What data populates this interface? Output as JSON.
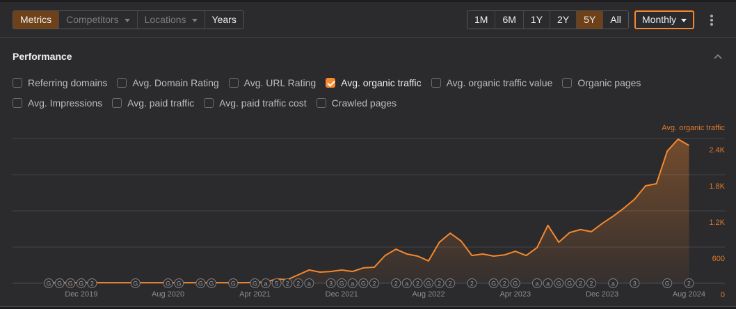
{
  "toolbar": {
    "left_tabs": [
      {
        "label": "Metrics",
        "active": true
      },
      {
        "label": "Competitors",
        "dropdown": true
      },
      {
        "label": "Locations",
        "dropdown": true
      },
      {
        "label": "Years"
      }
    ],
    "ranges": [
      {
        "label": "1M"
      },
      {
        "label": "6M"
      },
      {
        "label": "1Y"
      },
      {
        "label": "2Y"
      },
      {
        "label": "5Y",
        "active": true
      },
      {
        "label": "All"
      }
    ],
    "interval": "Monthly",
    "more_icon": "kebab-vertical-icon"
  },
  "section": {
    "title": "Performance",
    "collapse_icon": "chevron-up-icon"
  },
  "metrics": [
    [
      {
        "label": "Referring domains",
        "checked": false
      },
      {
        "label": "Avg. Domain Rating",
        "checked": false
      },
      {
        "label": "Avg. URL Rating",
        "checked": false
      },
      {
        "label": "Avg. organic traffic",
        "checked": true
      },
      {
        "label": "Avg. organic traffic value",
        "checked": false
      },
      {
        "label": "Organic pages",
        "checked": false
      }
    ],
    [
      {
        "label": "Avg. Impressions",
        "checked": false
      },
      {
        "label": "Avg. paid traffic",
        "checked": false
      },
      {
        "label": "Avg. paid traffic cost",
        "checked": false
      },
      {
        "label": "Crawled pages",
        "checked": false
      }
    ]
  ],
  "colors": {
    "accent": "#f7882b",
    "active_tab": "#6e4119",
    "background": "#2b2b2e"
  },
  "chart_data": {
    "type": "area",
    "series": [
      {
        "name": "Avg. organic traffic",
        "start": "Sep 2019",
        "interval": "month",
        "values": [
          10,
          10,
          10,
          10,
          10,
          10,
          10,
          10,
          10,
          10,
          10,
          10,
          10,
          10,
          10,
          10,
          10,
          10,
          10,
          15,
          20,
          70,
          60,
          140,
          220,
          185,
          195,
          220,
          195,
          255,
          265,
          460,
          565,
          485,
          450,
          370,
          680,
          830,
          700,
          460,
          485,
          450,
          470,
          530,
          460,
          590,
          960,
          680,
          840,
          890,
          855,
          990,
          1110,
          1245,
          1395,
          1615,
          1650,
          2190,
          2390,
          2285
        ]
      }
    ],
    "x_ticks": [
      {
        "label": "Dec 2019",
        "index": 3
      },
      {
        "label": "Aug 2020",
        "index": 11
      },
      {
        "label": "Apr 2021",
        "index": 19
      },
      {
        "label": "Dec 2021",
        "index": 27
      },
      {
        "label": "Aug 2022",
        "index": 35
      },
      {
        "label": "Apr 2023",
        "index": 43
      },
      {
        "label": "Dec 2023",
        "index": 51
      },
      {
        "label": "Aug 2024",
        "index": 59
      }
    ],
    "y_ticks": [
      {
        "label": "0",
        "value": 0
      },
      {
        "label": "600",
        "value": 600
      },
      {
        "label": "1.2K",
        "value": 1200
      },
      {
        "label": "1.8K",
        "value": 1800
      },
      {
        "label": "2.4K",
        "value": 2400
      }
    ],
    "ylim": [
      0,
      2400
    ],
    "axis_title": "Avg. organic traffic",
    "grid": true,
    "annotations": [
      {
        "index": 0,
        "label": "G"
      },
      {
        "index": 1,
        "label": "G"
      },
      {
        "index": 2,
        "label": "G"
      },
      {
        "index": 3,
        "label": "G"
      },
      {
        "index": 4,
        "label": "2"
      },
      {
        "index": 8,
        "label": "G"
      },
      {
        "index": 11,
        "label": "G"
      },
      {
        "index": 12,
        "label": "G"
      },
      {
        "index": 14,
        "label": "G"
      },
      {
        "index": 15,
        "label": "G"
      },
      {
        "index": 17,
        "label": "G"
      },
      {
        "index": 19,
        "label": "G"
      },
      {
        "index": 20,
        "label": "a"
      },
      {
        "index": 21,
        "label": "5"
      },
      {
        "index": 22,
        "label": "2"
      },
      {
        "index": 23,
        "label": "2"
      },
      {
        "index": 24,
        "label": "a"
      },
      {
        "index": 26,
        "label": "3"
      },
      {
        "index": 27,
        "label": "G"
      },
      {
        "index": 28,
        "label": "a"
      },
      {
        "index": 29,
        "label": "G"
      },
      {
        "index": 30,
        "label": "2"
      },
      {
        "index": 32,
        "label": "2"
      },
      {
        "index": 33,
        "label": "a"
      },
      {
        "index": 34,
        "label": "2"
      },
      {
        "index": 35,
        "label": "G"
      },
      {
        "index": 36,
        "label": "2"
      },
      {
        "index": 37,
        "label": "2"
      },
      {
        "index": 39,
        "label": "2"
      },
      {
        "index": 41,
        "label": "G"
      },
      {
        "index": 42,
        "label": "2"
      },
      {
        "index": 43,
        "label": "G"
      },
      {
        "index": 45,
        "label": "a"
      },
      {
        "index": 46,
        "label": "a"
      },
      {
        "index": 47,
        "label": "G"
      },
      {
        "index": 48,
        "label": "G"
      },
      {
        "index": 49,
        "label": "2"
      },
      {
        "index": 50,
        "label": "2"
      },
      {
        "index": 52,
        "label": "a"
      },
      {
        "index": 54,
        "label": "3"
      },
      {
        "index": 57,
        "label": "G"
      },
      {
        "index": 59,
        "label": "2"
      }
    ]
  }
}
